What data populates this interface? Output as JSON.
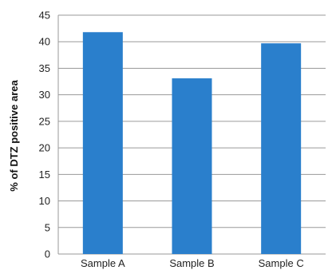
{
  "chart_data": {
    "type": "bar",
    "categories": [
      "Sample A",
      "Sample B",
      "Sample C"
    ],
    "values": [
      41.8,
      33.1,
      39.7
    ],
    "title": "",
    "xlabel": "",
    "ylabel": "% of DTZ positive area",
    "ylim": [
      0,
      45
    ],
    "yticks": [
      0,
      5,
      10,
      15,
      20,
      25,
      30,
      35,
      40,
      45
    ],
    "grid": true,
    "legend": "none",
    "bar_color": "#2a7fcc"
  }
}
